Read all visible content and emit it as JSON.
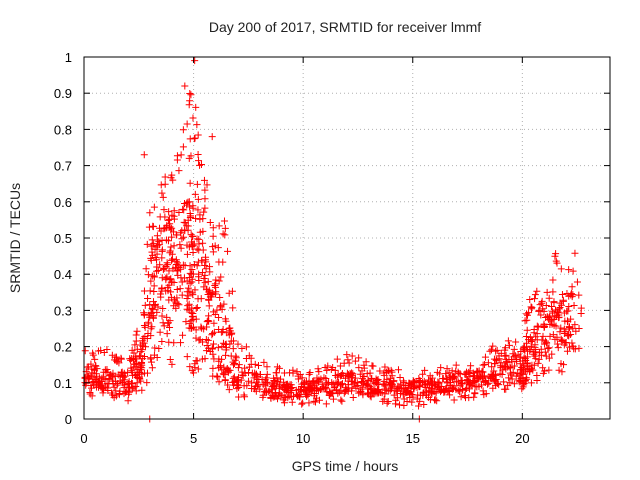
{
  "chart_data": {
    "type": "scatter",
    "title": "Day 200 of 2017, SRMTID for receiver lmmf",
    "xlabel": "GPS time / hours",
    "ylabel": "SRMTID / TECUs",
    "xlim": [
      0,
      24
    ],
    "ylim": [
      0,
      1
    ],
    "x_ticks": [
      0,
      5,
      10,
      15,
      20
    ],
    "x_tick_labels": [
      "0",
      "5",
      "10",
      "15",
      "20"
    ],
    "y_ticks": [
      0,
      0.1,
      0.2,
      0.3,
      0.4,
      0.5,
      0.6,
      0.7,
      0.8,
      0.9,
      1
    ],
    "y_tick_labels": [
      "0",
      "0.1",
      "0.2",
      "0.3",
      "0.4",
      "0.5",
      "0.6",
      "0.7",
      "0.8",
      "0.9",
      "1"
    ],
    "grid": true,
    "marker": "plus",
    "marker_color": "#ff0000",
    "series": [
      {
        "name": "SRMTID",
        "envelope": [
          {
            "t": 0.0,
            "low": 0.06,
            "mid": 0.12,
            "high": 0.2,
            "n": 70
          },
          {
            "t": 1.0,
            "low": 0.06,
            "mid": 0.11,
            "high": 0.2,
            "n": 60
          },
          {
            "t": 2.0,
            "low": 0.05,
            "mid": 0.09,
            "high": 0.16,
            "n": 60
          },
          {
            "t": 2.6,
            "low": 0.07,
            "mid": 0.15,
            "high": 0.28,
            "n": 40
          },
          {
            "t": 3.0,
            "low": 0.1,
            "mid": 0.35,
            "high": 0.6,
            "n": 60
          },
          {
            "t": 3.5,
            "low": 0.2,
            "mid": 0.42,
            "high": 0.65,
            "n": 70
          },
          {
            "t": 4.0,
            "low": 0.15,
            "mid": 0.45,
            "high": 0.7,
            "n": 70
          },
          {
            "t": 4.7,
            "low": 0.15,
            "mid": 0.45,
            "high": 0.85,
            "n": 70
          },
          {
            "t": 5.0,
            "low": 0.12,
            "mid": 0.4,
            "high": 0.98,
            "n": 60
          },
          {
            "t": 5.5,
            "low": 0.15,
            "mid": 0.35,
            "high": 0.7,
            "n": 60
          },
          {
            "t": 6.0,
            "low": 0.1,
            "mid": 0.25,
            "high": 0.6,
            "n": 50
          },
          {
            "t": 6.5,
            "low": 0.08,
            "mid": 0.2,
            "high": 0.55,
            "n": 40
          },
          {
            "t": 7.0,
            "low": 0.05,
            "mid": 0.12,
            "high": 0.22,
            "n": 50
          },
          {
            "t": 8.0,
            "low": 0.05,
            "mid": 0.1,
            "high": 0.17,
            "n": 60
          },
          {
            "t": 9.0,
            "low": 0.04,
            "mid": 0.08,
            "high": 0.14,
            "n": 60
          },
          {
            "t": 10.0,
            "low": 0.04,
            "mid": 0.08,
            "high": 0.13,
            "n": 60
          },
          {
            "t": 11.0,
            "low": 0.04,
            "mid": 0.09,
            "high": 0.15,
            "n": 60
          },
          {
            "t": 12.0,
            "low": 0.05,
            "mid": 0.1,
            "high": 0.18,
            "n": 60
          },
          {
            "t": 13.0,
            "low": 0.05,
            "mid": 0.09,
            "high": 0.16,
            "n": 60
          },
          {
            "t": 14.0,
            "low": 0.04,
            "mid": 0.08,
            "high": 0.14,
            "n": 60
          },
          {
            "t": 15.0,
            "low": 0.03,
            "mid": 0.08,
            "high": 0.13,
            "n": 60
          },
          {
            "t": 16.0,
            "low": 0.05,
            "mid": 0.09,
            "high": 0.14,
            "n": 60
          },
          {
            "t": 17.0,
            "low": 0.05,
            "mid": 0.1,
            "high": 0.15,
            "n": 60
          },
          {
            "t": 18.0,
            "low": 0.06,
            "mid": 0.11,
            "high": 0.17,
            "n": 60
          },
          {
            "t": 19.0,
            "low": 0.08,
            "mid": 0.14,
            "high": 0.22,
            "n": 60
          },
          {
            "t": 20.0,
            "low": 0.08,
            "mid": 0.15,
            "high": 0.25,
            "n": 60
          },
          {
            "t": 20.5,
            "low": 0.1,
            "mid": 0.2,
            "high": 0.38,
            "n": 40
          },
          {
            "t": 21.0,
            "low": 0.1,
            "mid": 0.22,
            "high": 0.33,
            "n": 40
          },
          {
            "t": 21.5,
            "low": 0.12,
            "mid": 0.25,
            "high": 0.48,
            "n": 40
          },
          {
            "t": 22.0,
            "low": 0.12,
            "mid": 0.28,
            "high": 0.45,
            "n": 40
          },
          {
            "t": 22.7,
            "low": 0.12,
            "mid": 0.25,
            "high": 0.52,
            "n": 40
          }
        ],
        "outliers": [
          {
            "x": 3.0,
            "y": 0.0
          },
          {
            "x": 15.3,
            "y": 0.0
          },
          {
            "x": 2.75,
            "y": 0.73
          },
          {
            "x": 5.05,
            "y": 0.99
          },
          {
            "x": 4.6,
            "y": 0.92
          },
          {
            "x": 5.85,
            "y": 0.78
          }
        ]
      }
    ]
  }
}
